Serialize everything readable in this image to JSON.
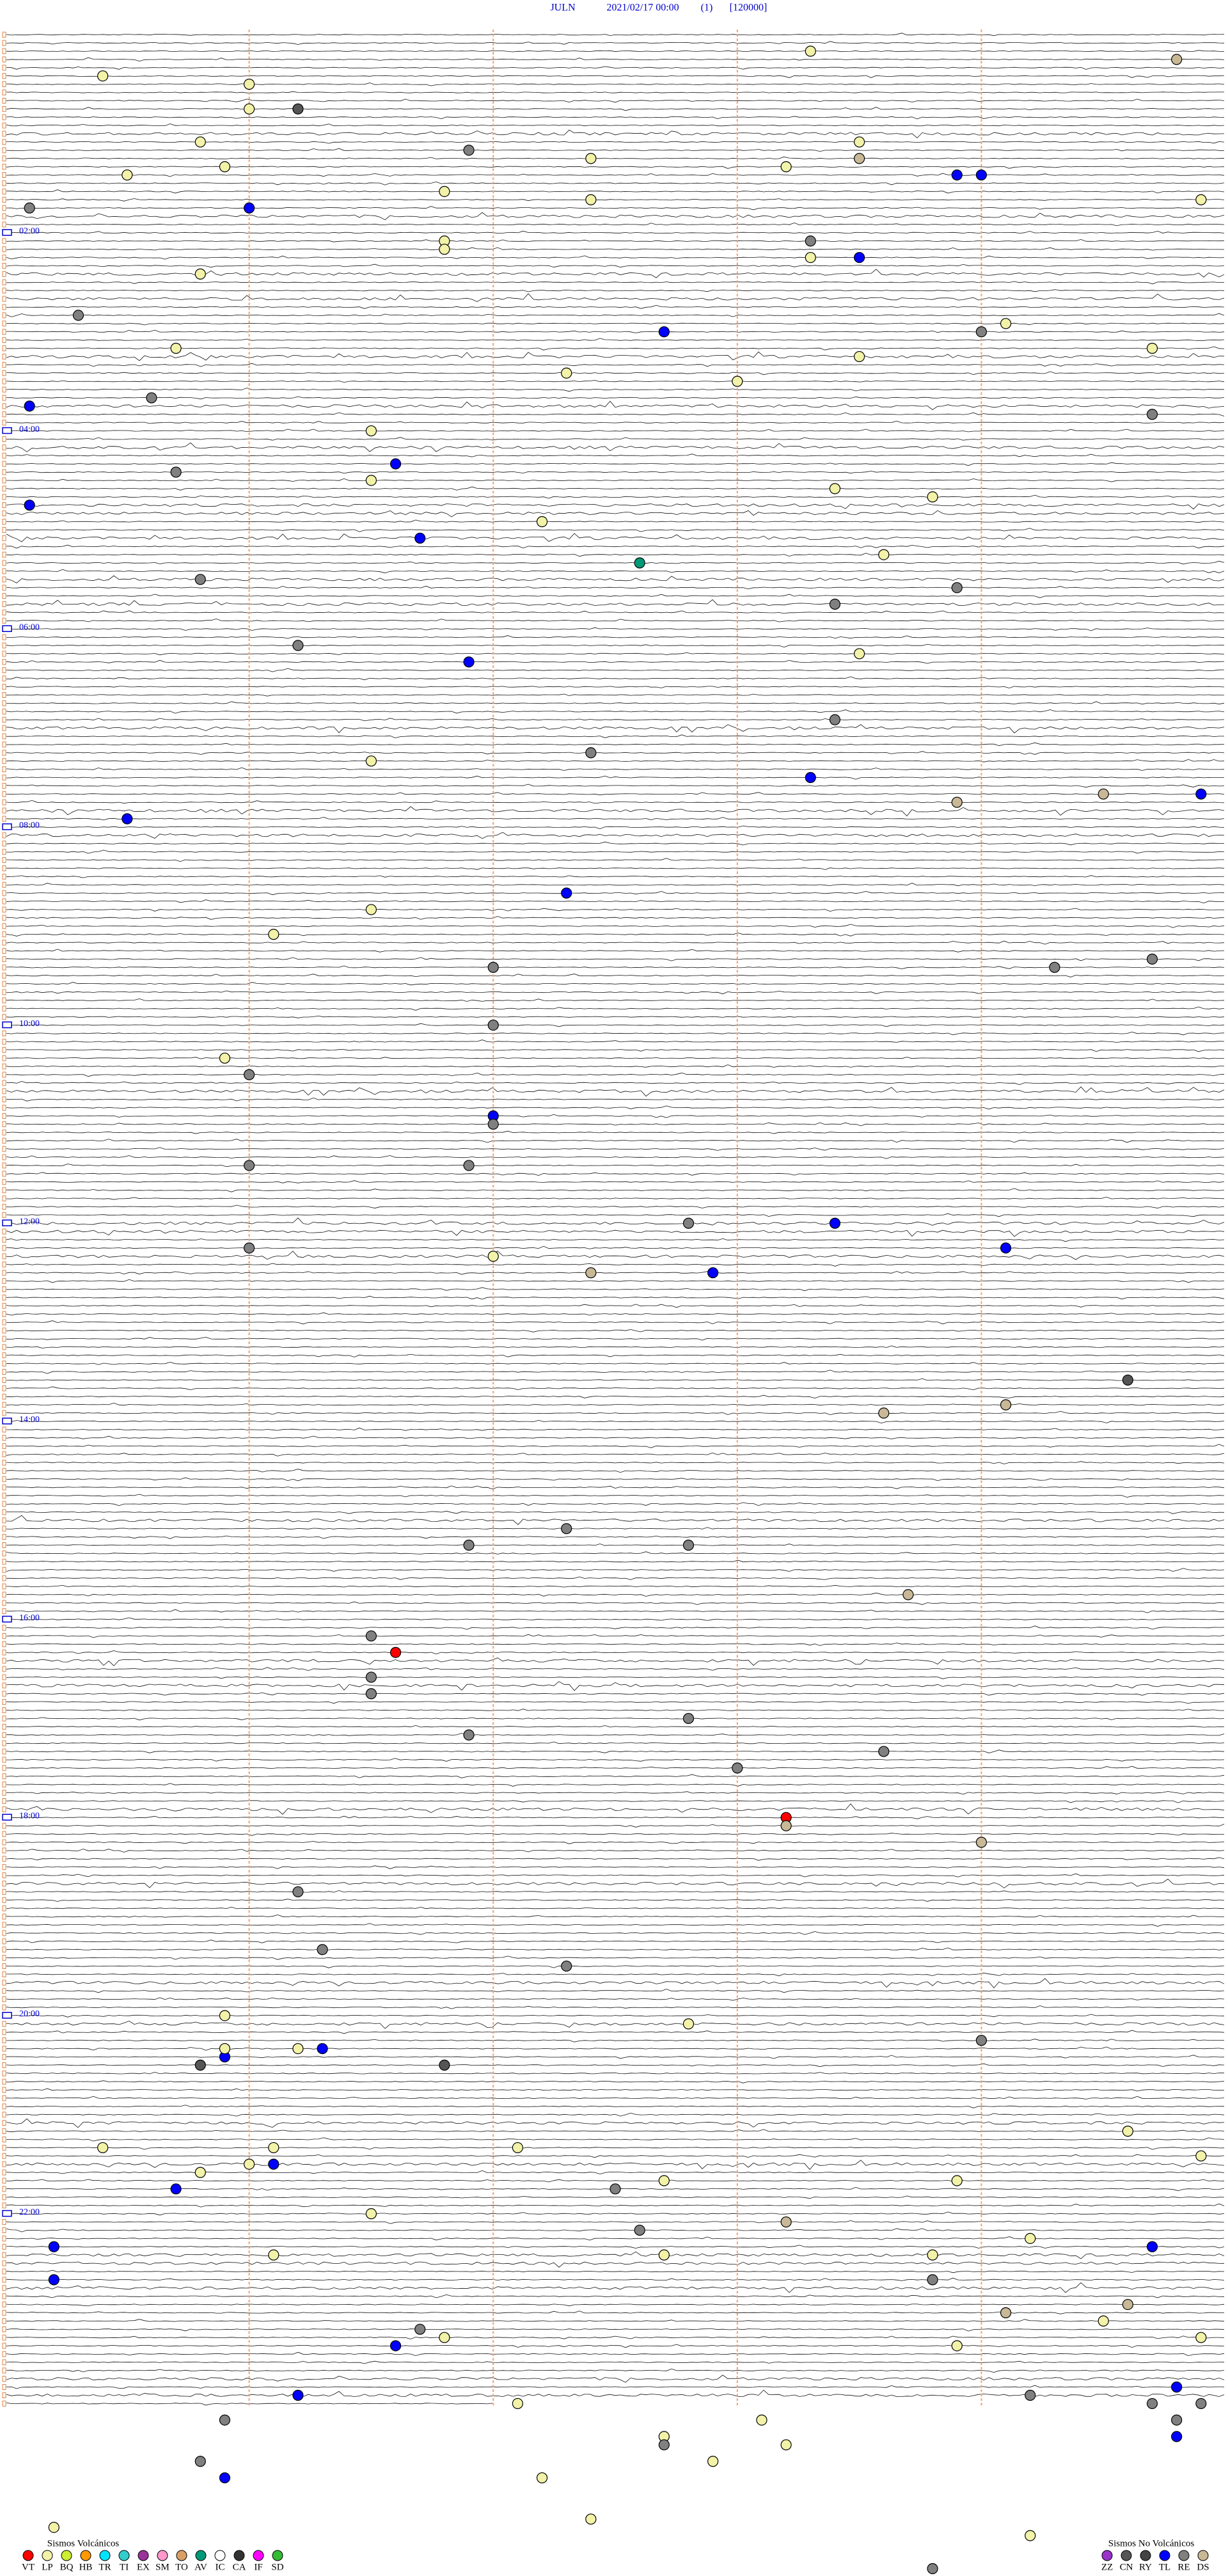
{
  "header": {
    "station": "JULN",
    "datetime": "2021/02/17 00:00",
    "channel": "(1)",
    "scale": "[120000]"
  },
  "hour_labels": [
    "02:00",
    "04:00",
    "06:00",
    "08:00",
    "10:00",
    "12:00",
    "14:00",
    "16:00",
    "18:00",
    "20:00",
    "22:00"
  ],
  "events": {
    "minutes": [
      13.3,
      19.8,
      25.4,
      31.0,
      46.0,
      46.2,
      65.8,
      68.5,
      71.9,
      77.4,
      78.5,
      80.9,
      83.2,
      85.5,
      88.9,
      89.0,
      96.8,
      102.4,
      104.9,
      105.1,
      106.0,
      128.3,
      126.8,
      131.8,
      138.3,
      138.5,
      145.8,
      170.3,
      179.1,
      182.7,
      184.0,
      190.7,
      194.7,
      198.5,
      207.3,
      213.0,
      220.6,
      225.1,
      234.7,
      241.5,
      261.6,
      265.7,
      271.5,
      278.4,
      283.8,
      285.1,
      297.2,
      306.7,
      318.6,
      322.6,
      330.8,
      338.9,
      348.4,
      371.2,
      378.5,
      381.9,
      418.4,
      437.4,
      441.5,
      453.3,
      464.5,
      464.9,
      468.9,
      475.5,
      522.3,
      531.5,
      546.1,
      564.7,
      569.3,
      567.0,
      602.0,
      620.9,
      631.0,
      657.0,
      662.0,
      686.0,
      686.9,
      722.8,
      723.4,
      736.0,
      739.1,
      742.0,
      752.4,
      752.9,
      819.6,
      834.1,
      838.6,
      907.3,
      916.9,
      917.8,
      948.7,
      971.5,
      981.6,
      996.5,
      1006.5,
      1022.8,
      1031.9,
      1043.6,
      1053.0,
      1083.2,
      1088.2,
      1099.0,
      1126.2,
      1161.3,
      1172.3,
      1200.9,
      1207.8,
      1219.0,
      1225.9,
      1220.9,
      1221.2,
      1221.3,
      1230.8,
      1231.8,
      1274.6,
      1280.4,
      1281.1,
      1282.1,
      1289.9,
      1291.0,
      1291.1,
      1295.8,
      1302.7,
      1303.9,
      1305.7,
      1307.5,
      1321.5,
      1328.2,
      1332.6,
      1339.2,
      1340.2,
      1344.7,
      1346.1,
      1347.7,
      1348.8,
      1360.2,
      1363.8,
      1379.6,
      1384.1,
      1389.5,
      1391.7,
      1396.8,
      1399.9,
      1401.6,
      1403.9,
      1429.8,
      1431.2,
      1434.2,
      1437.1,
      1439.7,
      1439.9,
      1445.9,
      1448.1,
      1449.8,
      1459.8,
      1457.7,
      1462.7,
      1463.2,
      1470.8,
      1472.9,
      1480.9,
      1482.2,
      1507.4,
      1510.2,
      1519.2,
      1538.8
    ],
    "types": [
      "LP",
      "DS",
      "LP",
      "LP",
      "LP",
      "CN",
      "LP",
      "LP",
      "RE",
      "LP",
      "DS",
      "LP",
      "LP",
      "LP",
      "TL",
      "TL",
      "LP",
      "LP",
      "LP",
      "RE",
      "TL",
      "RE",
      "LP",
      "LP",
      "LP",
      "TL",
      "LP",
      "RE",
      "LP",
      "TL",
      "RE",
      "LP",
      "LP",
      "LP",
      "LP",
      "LP",
      "RE",
      "TL",
      "RE",
      "LP",
      "TL",
      "RE",
      "LP",
      "LP",
      "LP",
      "TL",
      "LP",
      "TL",
      "LP",
      "AV",
      "RE",
      "RE",
      "RE",
      "RE",
      "LP",
      "TL",
      "RE",
      "RE",
      "LP",
      "TL",
      "DS",
      "TL",
      "DS",
      "TL",
      "TL",
      "LP",
      "LP",
      "RE",
      "RE",
      "RE",
      "RE",
      "LP",
      "RE",
      "TL",
      "RE",
      "RE",
      "RE",
      "RE",
      "TL",
      "RE",
      "TL",
      "LP",
      "DS",
      "TL",
      "CN",
      "DS",
      "DS",
      "RE",
      "RE",
      "RE",
      "DS",
      "RE",
      "VT",
      "RE",
      "RE",
      "RE",
      "RE",
      "RE",
      "RE",
      "VT",
      "DS",
      "DS",
      "RE",
      "RE",
      "RE",
      "LP",
      "LP",
      "RE",
      "TL",
      "LP",
      "LP",
      "TL",
      "CN",
      "CN",
      "LP",
      "LP",
      "LP",
      "LP",
      "LP",
      "LP",
      "TL",
      "LP",
      "LP",
      "LP",
      "TL",
      "RE",
      "LP",
      "DS",
      "RE",
      "LP",
      "TL",
      "TL",
      "LP",
      "LP",
      "LP",
      "TL",
      "RE",
      "DS",
      "DS",
      "LP",
      "RE",
      "LP",
      "LP",
      "TL",
      "LP",
      "TL",
      "TL",
      "RE",
      "LP",
      "RE",
      "RE",
      "RE",
      "LP",
      "RE",
      "TL",
      "LP",
      "RE",
      "LP",
      "RE",
      "LP",
      "TL",
      "LP",
      "LP",
      "LP",
      "LP",
      "RE"
    ]
  },
  "legend_volcanic": {
    "title": "Sismos Volcánicos",
    "codes": [
      "VT",
      "LP",
      "BQ",
      "HB",
      "TR",
      "TI",
      "EX",
      "SM",
      "TO",
      "AV",
      "IC",
      "CA",
      "IF",
      "SD"
    ],
    "colors": [
      "#ff0000",
      "#f2f2a8",
      "#ccee33",
      "#ff9900",
      "#00e5ff",
      "#33cccc",
      "#993399",
      "#ff99cc",
      "#d9a066",
      "#009977",
      "#ffffff",
      "#333333",
      "#ff00ff",
      "#33bb33"
    ]
  },
  "legend_non_volcanic": {
    "title": "Sismos No Volcánicos",
    "codes": [
      "ZZ",
      "CN",
      "RY",
      "TL",
      "RE",
      "DS"
    ],
    "colors": [
      "#9933cc",
      "#555555",
      "#444444",
      "#0000ff",
      "#808080",
      "#c8b896"
    ]
  }
}
